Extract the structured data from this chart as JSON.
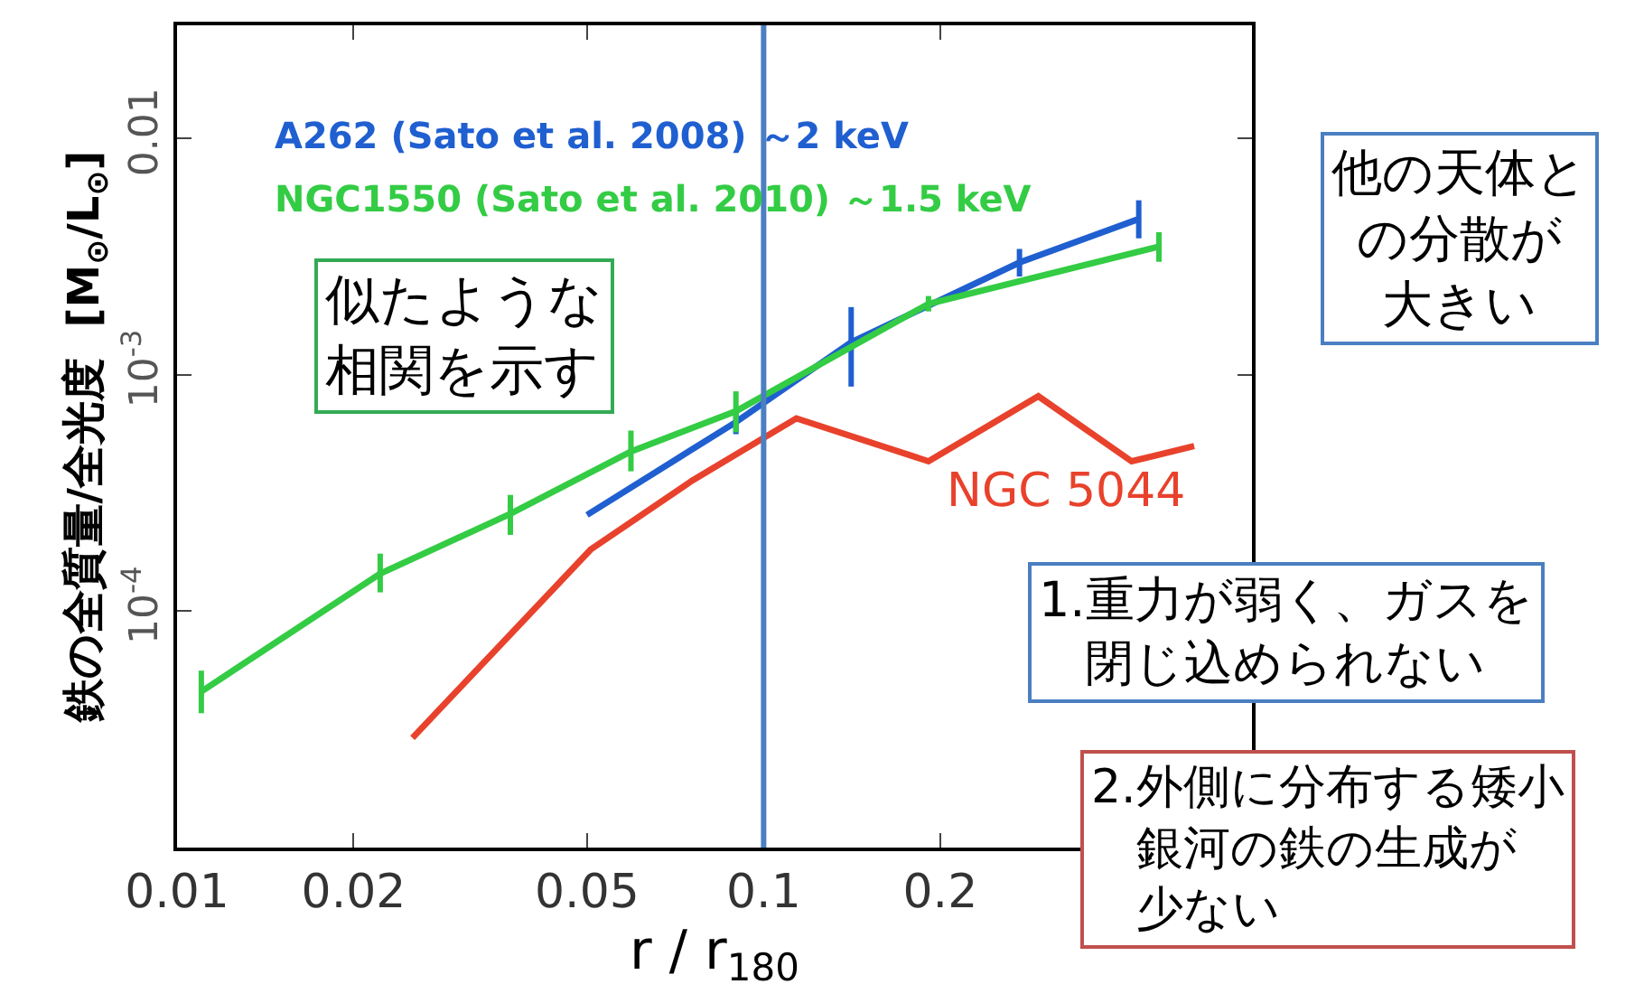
{
  "chart_data": {
    "type": "line",
    "xlabel": "r / r$_{180}$",
    "ylabel": "鉄の全質量/全光度  [M$_{⊙}$/L$_{⊙}$]",
    "log": "xy",
    "legend": false,
    "marker": "none",
    "line_style": "solid",
    "xlim": [
      0.01,
      0.68
    ],
    "xticks": [
      0.01,
      0.02,
      0.05,
      0.1,
      0.2
    ],
    "ylim": [
      1e-05,
      0.03
    ],
    "yticks": [
      {
        "value": 0.0001,
        "label": "10$^{-4}$"
      },
      {
        "value": 0.001,
        "label": "10$^{-3}$"
      },
      0.01
    ],
    "series": [
      {
        "name": "A262 (Sato et al. 2008) ～2 keV",
        "color": "#1f5fd0",
        "x": [
          0.05,
          0.0897,
          0.141,
          0.273,
          0.436
        ],
        "values": [
          0.000255,
          0.00063,
          0.00137,
          0.00298,
          0.00455
        ],
        "errors": [
          null,
          [
            0.00056,
            0.00071
          ],
          [
            0.00089,
            0.00193
          ],
          [
            0.0026,
            0.0034
          ],
          [
            0.00377,
            0.00546
          ]
        ]
      },
      {
        "name": "NGC1550 (Sato et al. 2010) ～1.5 keV",
        "color": "#33cc44",
        "x": [
          0.011,
          0.0222,
          0.037,
          0.0594,
          0.0897,
          0.191,
          0.472
        ],
        "values": [
          4.57e-05,
          0.000144,
          0.000258,
          0.000473,
          0.0007,
          0.00199,
          0.00348
        ],
        "errors": [
          [
            3.7e-05,
            5.6e-05
          ],
          [
            0.00012,
            0.000175
          ],
          [
            0.00021,
            0.00031
          ],
          [
            0.00039,
            0.00058
          ],
          [
            0.00057,
            0.00085
          ],
          [
            0.00185,
            0.00215
          ],
          [
            0.003,
            0.004
          ]
        ]
      },
      {
        "name": "NGC 5044",
        "color": "#e8422c",
        "x": [
          0.0252,
          0.0507,
          0.0755,
          0.1137,
          0.191,
          0.294,
          0.424,
          0.542
        ],
        "values": [
          2.91e-05,
          0.000182,
          0.000356,
          0.000653,
          0.00043,
          0.00081,
          0.00043,
          0.000499
        ]
      }
    ],
    "ref_lines": [
      {
        "axis": "x",
        "value": 0.1,
        "color": "#4a7fc1"
      }
    ],
    "annotations": [
      "似たような相関を示す",
      "他の天体との分散が大きい",
      "1.重力が弱く、ガスを閉じ込められない",
      "2.外側に分布する矮小銀河の鉄の生成が少ない"
    ]
  }
}
